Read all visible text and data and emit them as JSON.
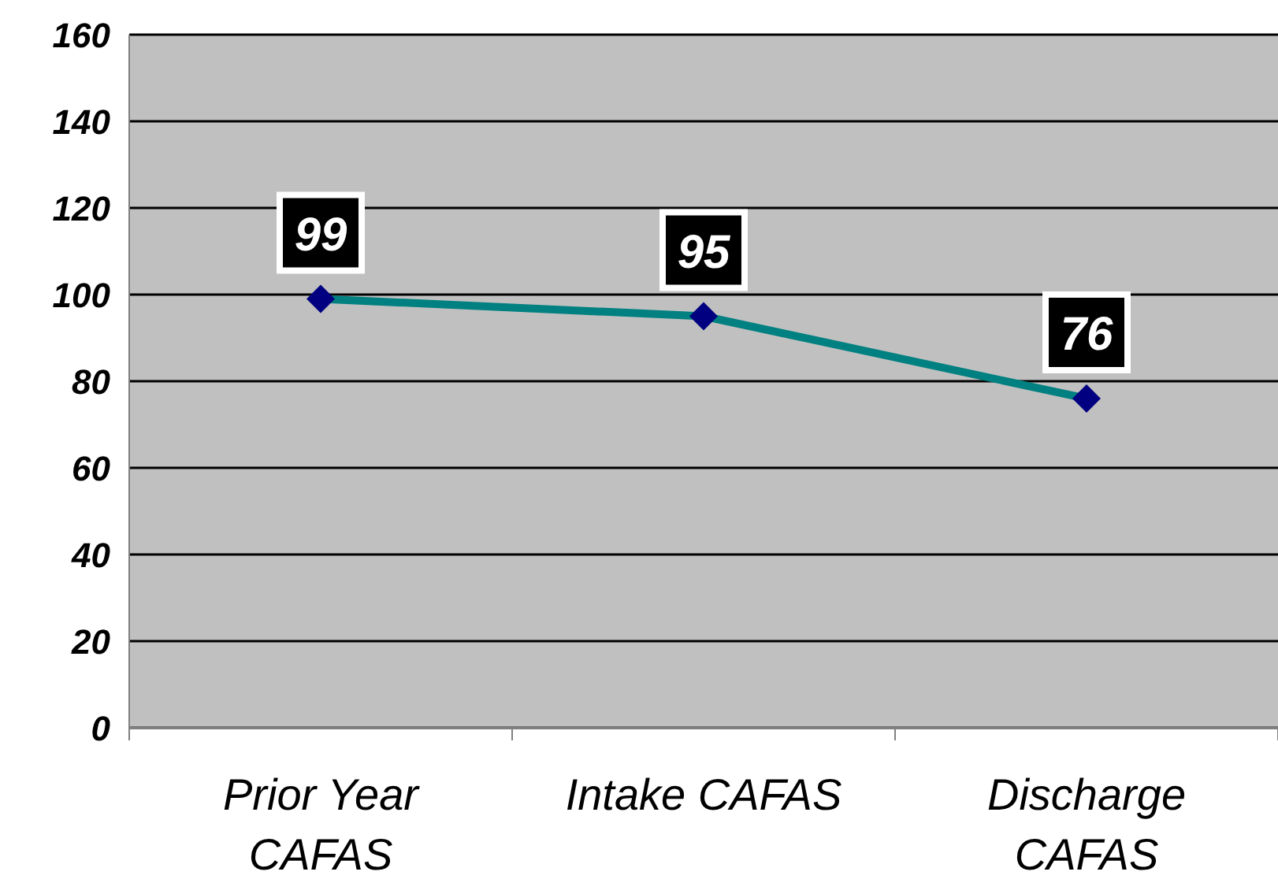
{
  "chart_data": {
    "type": "line",
    "categories": [
      "Prior Year CAFAS",
      "Intake CAFAS",
      "Discharge CAFAS"
    ],
    "series": [
      {
        "color": "#008080",
        "values": [
          99,
          95,
          76
        ]
      }
    ],
    "ylim": [
      0,
      160
    ],
    "yticks": [
      0,
      20,
      40,
      60,
      80,
      100,
      120,
      140,
      160
    ],
    "grid": "y",
    "marker": "diamond",
    "data_labels": true
  }
}
